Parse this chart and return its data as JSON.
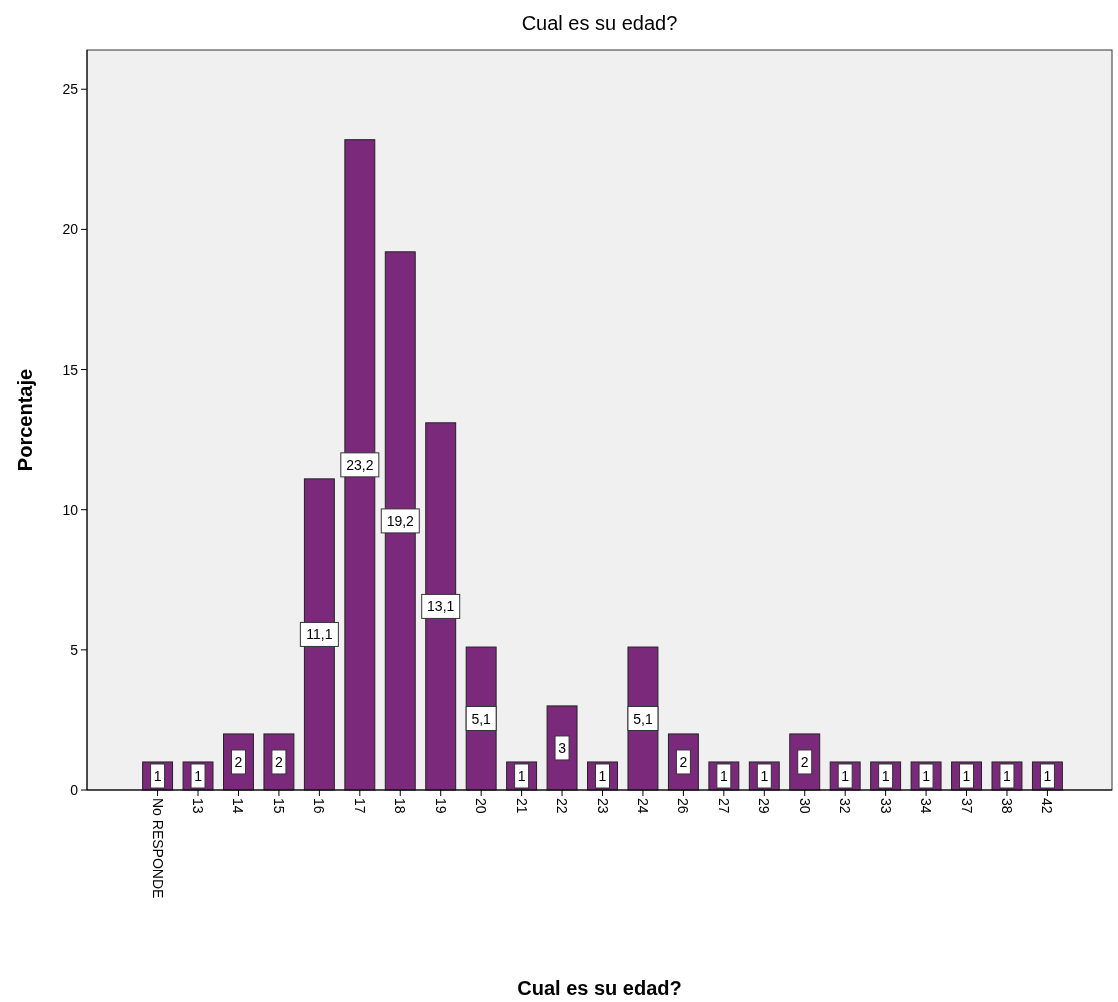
{
  "chart_data": {
    "type": "bar",
    "title": "Cual es su edad?",
    "xlabel": "Cual es su edad?",
    "ylabel": "Porcentaje",
    "categories": [
      "No RESPONDE",
      "13",
      "14",
      "15",
      "16",
      "17",
      "18",
      "19",
      "20",
      "21",
      "22",
      "23",
      "24",
      "26",
      "27",
      "29",
      "30",
      "32",
      "33",
      "34",
      "37",
      "38",
      "42"
    ],
    "values": [
      1,
      1,
      2,
      2,
      11.1,
      23.2,
      19.2,
      13.1,
      5.1,
      1,
      3,
      1,
      5.1,
      2,
      1,
      1,
      2,
      1,
      1,
      1,
      1,
      1,
      1
    ],
    "value_labels": [
      "1",
      "1",
      "2",
      "2",
      "11,1",
      "23,2",
      "19,2",
      "13,1",
      "5,1",
      "1",
      "3",
      "1",
      "5,1",
      "2",
      "1",
      "1",
      "2",
      "1",
      "1",
      "1",
      "1",
      "1",
      "1"
    ],
    "color": "#7b2a7b",
    "ylim": [
      0,
      26.4
    ],
    "yticks": [
      0,
      5,
      10,
      15,
      20,
      25
    ],
    "grid": false
  }
}
